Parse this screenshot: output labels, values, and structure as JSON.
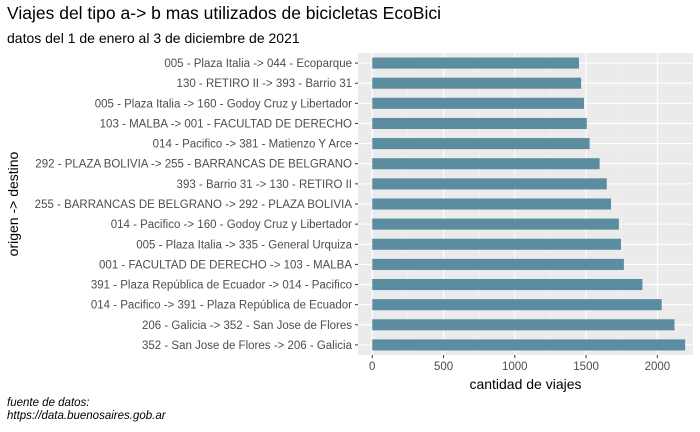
{
  "chart_data": {
    "type": "bar",
    "orientation": "horizontal",
    "title": "Viajes del tipo a-> b mas utilizados de bicicletas EcoBici",
    "subtitle": "datos del 1 de enero al 3 de diciembre de 2021",
    "xlabel": "cantidad de viajes",
    "ylabel": "origen -> destino",
    "caption_line1": "fuente de datos:",
    "caption_line2": "https://data.buenosaires.gob.ar",
    "xlim": [
      -100,
      2250
    ],
    "xticks": [
      0,
      500,
      1000,
      1500,
      2000
    ],
    "grid": true,
    "panel_color": "#ebebeb",
    "bar_color": "#5b8ca0",
    "categories": [
      "005 - Plaza Italia -> 044 - Ecoparque",
      "130 - RETIRO II -> 393 - Barrio 31",
      "005 - Plaza Italia -> 160 - Godoy Cruz y Libertador",
      "103 - MALBA -> 001 - FACULTAD DE DERECHO",
      "014 - Pacifico -> 381 - Matienzo Y Arce",
      "292 - PLAZA BOLIVIA -> 255 - BARRANCAS DE BELGRANO",
      "393 - Barrio 31 -> 130 - RETIRO II",
      "255 - BARRANCAS DE BELGRANO -> 292 - PLAZA BOLIVIA",
      "014 - Pacifico -> 160 - Godoy Cruz y Libertador",
      "005 - Plaza Italia -> 335 - General Urquiza",
      "001 - FACULTAD DE DERECHO -> 103 - MALBA",
      "391 - Plaza República de Ecuador -> 014 - Pacifico",
      "014 - Pacifico -> 391 - Plaza República de Ecuador",
      "206 - Galicia -> 352 - San Jose de Flores",
      "352 - San Jose de Flores -> 206 - Galicia"
    ],
    "values": [
      1450,
      1465,
      1485,
      1505,
      1525,
      1595,
      1645,
      1675,
      1730,
      1745,
      1765,
      1895,
      2030,
      2120,
      2195
    ]
  }
}
